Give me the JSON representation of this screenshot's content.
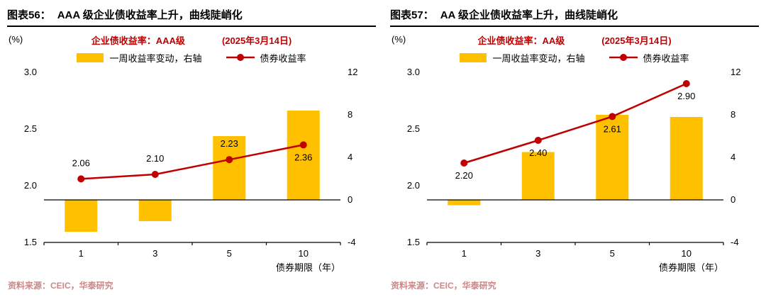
{
  "colors": {
    "line_red": "#C00000",
    "bar_yellow": "#FFC000",
    "header_red": "#C00000",
    "source_pink": "#CC8888",
    "axis_black": "#000000"
  },
  "source_text": "资料来源：CEIC，华泰研究",
  "chart_data": [
    {
      "figure_label": "图表56：",
      "title": "AAA 级企业债收益率上升，曲线陡峭化",
      "subtitle": "企业债收益率：AAA级",
      "date_note": "(2025年3月14日)",
      "type": "combo",
      "legend_position": "top",
      "categories": [
        "1",
        "3",
        "5",
        "10"
      ],
      "series": [
        {
          "name": "一周收益率变动，右轴",
          "type": "bar",
          "axis": "right",
          "values": [
            -3.0,
            -2.0,
            6.0,
            8.4
          ]
        },
        {
          "name": "债券收益率",
          "type": "line",
          "axis": "left",
          "values": [
            2.06,
            2.1,
            2.23,
            2.36
          ],
          "labels": [
            "2.06",
            "2.10",
            "2.23",
            "2.36"
          ],
          "label_pos": [
            "above",
            "above",
            "above",
            "below"
          ]
        }
      ],
      "left_axis": {
        "label": "(%)",
        "min": 1.5,
        "max": 3.0,
        "ticks": [
          "3.0",
          "2.5",
          "2.0",
          "1.5"
        ]
      },
      "right_axis": {
        "min": -4,
        "max": 12,
        "ticks": [
          "12",
          "8",
          "4",
          "0",
          "-4"
        ]
      },
      "xlabel": "债券期限（年）",
      "zero_line": true
    },
    {
      "figure_label": "图表57：",
      "title": "AA 级企业债收益率上升，曲线陡峭化",
      "subtitle": "企业债收益率：AA级",
      "date_note": "(2025年3月14日)",
      "type": "combo",
      "legend_position": "top",
      "categories": [
        "1",
        "3",
        "5",
        "10"
      ],
      "series": [
        {
          "name": "一周收益率变动，右轴",
          "type": "bar",
          "axis": "right",
          "values": [
            -0.5,
            4.5,
            8.0,
            7.8
          ]
        },
        {
          "name": "债券收益率",
          "type": "line",
          "axis": "left",
          "values": [
            2.2,
            2.4,
            2.61,
            2.9
          ],
          "labels": [
            "2.20",
            "2.40",
            "2.61",
            "2.90"
          ],
          "label_pos": [
            "below",
            "below",
            "below",
            "below"
          ]
        }
      ],
      "left_axis": {
        "label": "(%)",
        "min": 1.5,
        "max": 3.0,
        "ticks": [
          "3.0",
          "2.5",
          "2.0",
          "1.5"
        ]
      },
      "right_axis": {
        "min": -4,
        "max": 12,
        "ticks": [
          "12",
          "8",
          "4",
          "0",
          "-4"
        ]
      },
      "xlabel": "债券期限（年）",
      "zero_line": true
    }
  ]
}
